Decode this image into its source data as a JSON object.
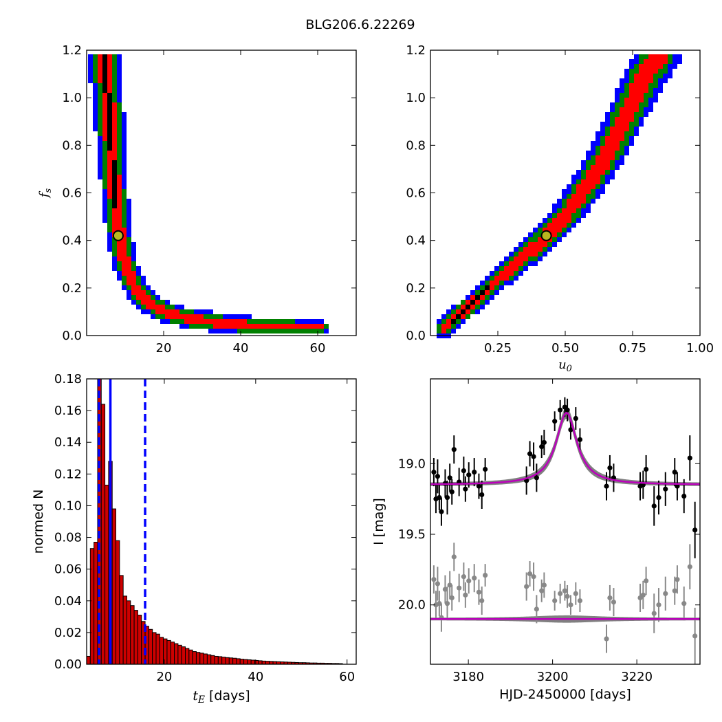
{
  "figure": {
    "title": "BLG206.6.22269"
  },
  "chart_data": [
    {
      "type": "heatmap",
      "panel": "top-left",
      "xlabel": "",
      "ylabel": "f_s",
      "xlim": [
        0,
        70
      ],
      "ylim": [
        0,
        1.2
      ],
      "xticks": [
        20,
        40,
        60
      ],
      "yticks": [
        0.0,
        0.2,
        0.4,
        0.6,
        0.8,
        1.0,
        1.2
      ],
      "xtick_labels": [
        "20",
        "40",
        "60"
      ],
      "ytick_labels": [
        "0.0",
        "0.2",
        "0.4",
        "0.6",
        "0.8",
        "1.0",
        "1.2"
      ],
      "levels": [
        {
          "name": "outer",
          "color": "#0000ff"
        },
        {
          "name": "middle",
          "color": "#008000"
        },
        {
          "name": "inner",
          "color": "#ff0000"
        },
        {
          "name": "core",
          "color": "#000000"
        }
      ],
      "ridge": [
        [
          4.5,
          1.18
        ],
        [
          5.5,
          1.0
        ],
        [
          6.5,
          0.78
        ],
        [
          7.3,
          0.6
        ],
        [
          8.0,
          0.5
        ],
        [
          8.5,
          0.42
        ],
        [
          10.0,
          0.3
        ],
        [
          12.0,
          0.22
        ],
        [
          15.0,
          0.15
        ],
        [
          20.0,
          0.1
        ],
        [
          27.0,
          0.07
        ],
        [
          36.0,
          0.05
        ],
        [
          45.0,
          0.04
        ],
        [
          55.0,
          0.035
        ],
        [
          61.0,
          0.035
        ]
      ],
      "best_fit": {
        "x": 8.2,
        "y": 0.42,
        "color": "#b8b820"
      }
    },
    {
      "type": "heatmap",
      "panel": "top-right",
      "xlabel": "u_0",
      "ylabel": "",
      "xlim": [
        0,
        1.0
      ],
      "ylim": [
        0,
        1.2
      ],
      "xticks": [
        0.25,
        0.5,
        0.75,
        1.0
      ],
      "yticks": [
        0.0,
        0.2,
        0.4,
        0.6,
        0.8,
        1.0,
        1.2
      ],
      "xtick_labels": [
        "0.25",
        "0.50",
        "0.75",
        "1.00"
      ],
      "ytick_labels": [
        "0.0",
        "0.2",
        "0.4",
        "0.6",
        "0.8",
        "1.0",
        "1.2"
      ],
      "levels": [
        {
          "name": "outer",
          "color": "#0000ff"
        },
        {
          "name": "middle",
          "color": "#008000"
        },
        {
          "name": "inner",
          "color": "#ff0000"
        },
        {
          "name": "core",
          "color": "#000000"
        }
      ],
      "ridge": [
        [
          0.05,
          0.03
        ],
        [
          0.1,
          0.08
        ],
        [
          0.15,
          0.13
        ],
        [
          0.2,
          0.18
        ],
        [
          0.3,
          0.29
        ],
        [
          0.4,
          0.38
        ],
        [
          0.45,
          0.44
        ],
        [
          0.5,
          0.5
        ],
        [
          0.55,
          0.58
        ],
        [
          0.6,
          0.66
        ],
        [
          0.65,
          0.75
        ],
        [
          0.7,
          0.86
        ],
        [
          0.75,
          0.98
        ],
        [
          0.8,
          1.1
        ],
        [
          0.85,
          1.18
        ]
      ],
      "best_fit": {
        "x": 0.43,
        "y": 0.42,
        "color": "#b8b820"
      }
    },
    {
      "type": "bar",
      "panel": "bottom-left",
      "xlabel": "t_E [days]",
      "ylabel": "normed N",
      "xlim": [
        3,
        62
      ],
      "ylim": [
        0,
        0.18
      ],
      "xticks": [
        20,
        40,
        60
      ],
      "yticks": [
        0.0,
        0.02,
        0.04,
        0.06,
        0.08,
        0.1,
        0.12,
        0.14,
        0.16,
        0.18
      ],
      "xtick_labels": [
        "20",
        "40",
        "60"
      ],
      "ytick_labels": [
        "0.00",
        "0.02",
        "0.04",
        "0.06",
        "0.08",
        "0.10",
        "0.12",
        "0.14",
        "0.16",
        "0.18"
      ],
      "bar_color": "#cc0000",
      "bin_start": 3.0,
      "bin_width": 0.8,
      "values": [
        0.005,
        0.073,
        0.077,
        0.185,
        0.164,
        0.113,
        0.128,
        0.098,
        0.078,
        0.056,
        0.043,
        0.04,
        0.037,
        0.034,
        0.031,
        0.027,
        0.024,
        0.022,
        0.02,
        0.019,
        0.017,
        0.016,
        0.015,
        0.014,
        0.013,
        0.012,
        0.011,
        0.01,
        0.009,
        0.008,
        0.0075,
        0.007,
        0.0065,
        0.006,
        0.0055,
        0.005,
        0.0048,
        0.0045,
        0.0042,
        0.004,
        0.0038,
        0.0035,
        0.0032,
        0.003,
        0.0028,
        0.0026,
        0.0024,
        0.0022,
        0.002,
        0.0019,
        0.0018,
        0.0017,
        0.0016,
        0.0015,
        0.0014,
        0.0013,
        0.0012,
        0.0011,
        0.001,
        0.001,
        0.0009,
        0.0008,
        0.0008,
        0.0007,
        0.0007,
        0.0006,
        0.0006,
        0.0005,
        0.0005,
        0.0004
      ],
      "vlines": [
        {
          "x": 5.7,
          "style": "dashed",
          "color": "#0000ff"
        },
        {
          "x": 8.2,
          "style": "solid",
          "color": "#0000ff"
        },
        {
          "x": 15.8,
          "style": "dashed",
          "color": "#0000ff"
        }
      ]
    },
    {
      "type": "scatter",
      "panel": "bottom-right",
      "xlabel": "HJD-2450000 [days]",
      "ylabel": "I [mag]",
      "xlim": [
        3171,
        3235
      ],
      "ylim": [
        20.42,
        18.4
      ],
      "xticks": [
        3180,
        3200,
        3220
      ],
      "yticks": [
        19.0,
        19.5,
        20.0
      ],
      "xtick_labels": [
        "3180",
        "3200",
        "3220"
      ],
      "ytick_labels": [
        "19.0",
        "19.5",
        "20.0"
      ],
      "model": {
        "t0": 3203.3,
        "baseline": 19.15,
        "amplitude": 0.51,
        "tau": 3.0,
        "color": "#bb00bb",
        "band_color": "#808080"
      },
      "residual_model": {
        "offset": 20.1,
        "color": "#bb00bb",
        "band_color": "#808080"
      },
      "series": [
        {
          "color": "#000000",
          "points": [
            {
              "x": 3171.8,
              "y": 19.06,
              "err": 0.1
            },
            {
              "x": 3172.3,
              "y": 19.25,
              "err": 0.1
            },
            {
              "x": 3172.7,
              "y": 19.09,
              "err": 0.12
            },
            {
              "x": 3173.1,
              "y": 19.24,
              "err": 0.09
            },
            {
              "x": 3173.6,
              "y": 19.34,
              "err": 0.1
            },
            {
              "x": 3174.5,
              "y": 19.14,
              "err": 0.1
            },
            {
              "x": 3175.0,
              "y": 19.24,
              "err": 0.12
            },
            {
              "x": 3175.6,
              "y": 19.1,
              "err": 0.1
            },
            {
              "x": 3176.1,
              "y": 19.2,
              "err": 0.09
            },
            {
              "x": 3176.6,
              "y": 18.9,
              "err": 0.1
            },
            {
              "x": 3177.8,
              "y": 19.13,
              "err": 0.1
            },
            {
              "x": 3178.9,
              "y": 19.05,
              "err": 0.1
            },
            {
              "x": 3179.3,
              "y": 19.18,
              "err": 0.09
            },
            {
              "x": 3180.1,
              "y": 19.08,
              "err": 0.09
            },
            {
              "x": 3181.4,
              "y": 19.06,
              "err": 0.1
            },
            {
              "x": 3182.5,
              "y": 19.16,
              "err": 0.09
            },
            {
              "x": 3183.2,
              "y": 19.22,
              "err": 0.1
            },
            {
              "x": 3184.0,
              "y": 19.04,
              "err": 0.08
            },
            {
              "x": 3193.8,
              "y": 19.12,
              "err": 0.1
            },
            {
              "x": 3194.6,
              "y": 18.93,
              "err": 0.09
            },
            {
              "x": 3195.5,
              "y": 18.95,
              "err": 0.1
            },
            {
              "x": 3196.2,
              "y": 19.1,
              "err": 0.1
            },
            {
              "x": 3197.4,
              "y": 18.88,
              "err": 0.08
            },
            {
              "x": 3198.0,
              "y": 18.85,
              "err": 0.09
            },
            {
              "x": 3200.5,
              "y": 18.7,
              "err": 0.07
            },
            {
              "x": 3201.8,
              "y": 18.62,
              "err": 0.07
            },
            {
              "x": 3202.9,
              "y": 18.6,
              "err": 0.07
            },
            {
              "x": 3203.5,
              "y": 18.62,
              "err": 0.08
            },
            {
              "x": 3204.3,
              "y": 18.76,
              "err": 0.07
            },
            {
              "x": 3205.5,
              "y": 18.68,
              "err": 0.08
            },
            {
              "x": 3206.5,
              "y": 18.83,
              "err": 0.08
            },
            {
              "x": 3212.8,
              "y": 19.16,
              "err": 0.1
            },
            {
              "x": 3213.6,
              "y": 19.03,
              "err": 0.09
            },
            {
              "x": 3214.5,
              "y": 19.1,
              "err": 0.1
            },
            {
              "x": 3220.8,
              "y": 19.16,
              "err": 0.1
            },
            {
              "x": 3221.5,
              "y": 19.15,
              "err": 0.1
            },
            {
              "x": 3222.2,
              "y": 19.04,
              "err": 0.1
            },
            {
              "x": 3224.1,
              "y": 19.3,
              "err": 0.14
            },
            {
              "x": 3225.2,
              "y": 19.24,
              "err": 0.12
            },
            {
              "x": 3226.8,
              "y": 19.18,
              "err": 0.12
            },
            {
              "x": 3229.0,
              "y": 19.06,
              "err": 0.1
            },
            {
              "x": 3229.6,
              "y": 19.16,
              "err": 0.1
            },
            {
              "x": 3231.2,
              "y": 19.23,
              "err": 0.12
            },
            {
              "x": 3232.6,
              "y": 18.96,
              "err": 0.16
            },
            {
              "x": 3233.8,
              "y": 19.47,
              "err": 0.2
            }
          ]
        },
        {
          "color": "#888888",
          "points": [
            {
              "x": 3171.8,
              "y": 19.82,
              "err": 0.1
            },
            {
              "x": 3172.3,
              "y": 20.0,
              "err": 0.1
            },
            {
              "x": 3172.7,
              "y": 19.85,
              "err": 0.12
            },
            {
              "x": 3173.1,
              "y": 19.99,
              "err": 0.09
            },
            {
              "x": 3173.6,
              "y": 20.09,
              "err": 0.1
            },
            {
              "x": 3174.5,
              "y": 19.89,
              "err": 0.1
            },
            {
              "x": 3175.0,
              "y": 19.99,
              "err": 0.12
            },
            {
              "x": 3175.6,
              "y": 19.86,
              "err": 0.1
            },
            {
              "x": 3176.1,
              "y": 19.95,
              "err": 0.09
            },
            {
              "x": 3176.6,
              "y": 19.66,
              "err": 0.1
            },
            {
              "x": 3177.8,
              "y": 19.88,
              "err": 0.1
            },
            {
              "x": 3178.9,
              "y": 19.8,
              "err": 0.1
            },
            {
              "x": 3179.3,
              "y": 19.93,
              "err": 0.09
            },
            {
              "x": 3180.1,
              "y": 19.83,
              "err": 0.09
            },
            {
              "x": 3181.4,
              "y": 19.81,
              "err": 0.1
            },
            {
              "x": 3182.5,
              "y": 19.91,
              "err": 0.09
            },
            {
              "x": 3183.2,
              "y": 19.97,
              "err": 0.1
            },
            {
              "x": 3184.0,
              "y": 19.79,
              "err": 0.08
            },
            {
              "x": 3193.8,
              "y": 19.87,
              "err": 0.1
            },
            {
              "x": 3194.6,
              "y": 19.78,
              "err": 0.09
            },
            {
              "x": 3195.5,
              "y": 19.8,
              "err": 0.1
            },
            {
              "x": 3196.2,
              "y": 20.03,
              "err": 0.1
            },
            {
              "x": 3197.4,
              "y": 19.9,
              "err": 0.08
            },
            {
              "x": 3198.0,
              "y": 19.86,
              "err": 0.09
            },
            {
              "x": 3200.5,
              "y": 19.97,
              "err": 0.07
            },
            {
              "x": 3201.8,
              "y": 19.92,
              "err": 0.07
            },
            {
              "x": 3202.9,
              "y": 19.9,
              "err": 0.07
            },
            {
              "x": 3203.5,
              "y": 19.94,
              "err": 0.08
            },
            {
              "x": 3204.3,
              "y": 20.0,
              "err": 0.07
            },
            {
              "x": 3205.5,
              "y": 19.92,
              "err": 0.08
            },
            {
              "x": 3206.5,
              "y": 19.97,
              "err": 0.08
            },
            {
              "x": 3212.8,
              "y": 20.24,
              "err": 0.1
            },
            {
              "x": 3213.6,
              "y": 19.95,
              "err": 0.09
            },
            {
              "x": 3214.5,
              "y": 19.98,
              "err": 0.1
            },
            {
              "x": 3220.8,
              "y": 19.95,
              "err": 0.1
            },
            {
              "x": 3221.5,
              "y": 19.93,
              "err": 0.1
            },
            {
              "x": 3222.2,
              "y": 19.83,
              "err": 0.1
            },
            {
              "x": 3224.1,
              "y": 20.06,
              "err": 0.14
            },
            {
              "x": 3225.2,
              "y": 20.0,
              "err": 0.12
            },
            {
              "x": 3226.8,
              "y": 19.92,
              "err": 0.12
            },
            {
              "x": 3229.0,
              "y": 19.9,
              "err": 0.1
            },
            {
              "x": 3229.6,
              "y": 19.82,
              "err": 0.1
            },
            {
              "x": 3231.2,
              "y": 19.99,
              "err": 0.12
            },
            {
              "x": 3232.6,
              "y": 19.73,
              "err": 0.16
            },
            {
              "x": 3233.8,
              "y": 20.22,
              "err": 0.2
            }
          ]
        }
      ]
    }
  ]
}
